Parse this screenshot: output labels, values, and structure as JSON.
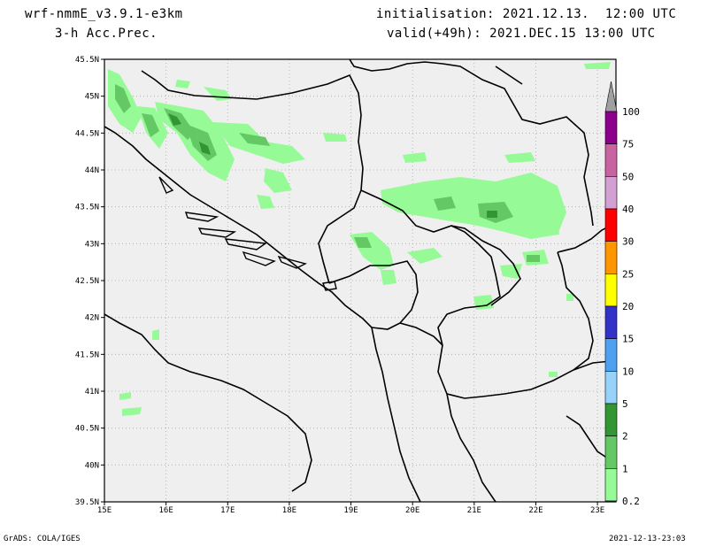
{
  "header": {
    "model": "wrf-nmmE_v3.9.1-e3km",
    "field": "3-h Acc.Prec.",
    "init": "initialisation: 2021.12.13.  12:00 UTC",
    "valid": "valid(+49h): 2021.DEC.15 13:00 UTC"
  },
  "map": {
    "lon_ticks": [
      "15E",
      "16E",
      "17E",
      "18E",
      "19E",
      "20E",
      "21E",
      "22E",
      "23E"
    ],
    "lat_ticks": [
      "45.5N",
      "45N",
      "44.5N",
      "44N",
      "43.5N",
      "43N",
      "42.5N",
      "42N",
      "41.5N",
      "41N",
      "40.5N",
      "40N",
      "39.5N"
    ],
    "lon_range": [
      15,
      23.3
    ],
    "lat_range": [
      39.5,
      45.5
    ],
    "grid": true
  },
  "colorbar": {
    "labels": [
      "100",
      "75",
      "50",
      "40",
      "30",
      "25",
      "20",
      "15",
      "10",
      "5",
      "2",
      "1",
      "0.2"
    ],
    "colors": [
      "#a0a0a0",
      "#8c008c",
      "#c864a0",
      "#d2a0d2",
      "#ff0000",
      "#ff9600",
      "#ffff00",
      "#3232c8",
      "#50a0f0",
      "#96d2fa",
      "#329632",
      "#64c864",
      "#96fa96",
      "#ffffff"
    ]
  },
  "footer": {
    "credit": "GrADS: COLA/IGES",
    "timestamp": "2021-12-13-23:03"
  }
}
